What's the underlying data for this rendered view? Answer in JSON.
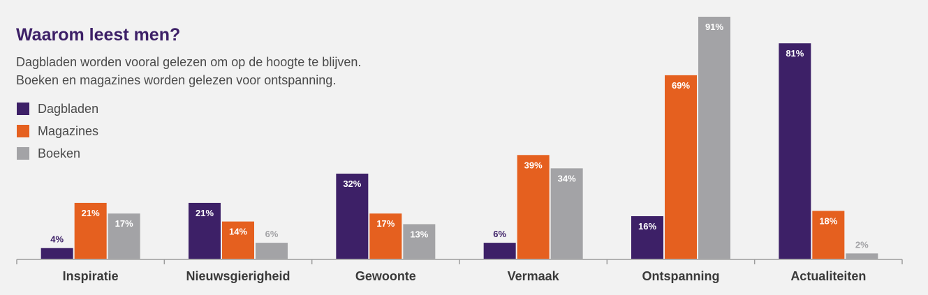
{
  "chart_data": {
    "type": "bar",
    "title": "Waarom leest men?",
    "subtitle_lines": [
      "Dagbladen worden vooral gelezen om op de hoogte te blijven.",
      "Boeken en magazines worden gelezen voor ontspanning."
    ],
    "categories": [
      "Inspiratie",
      "Nieuwsgierigheid",
      "Gewoonte",
      "Vermaak",
      "Ontspanning",
      "Actualiteiten"
    ],
    "series": [
      {
        "name": "Dagbladen",
        "color": "#3d2067",
        "values": [
          4,
          21,
          32,
          6,
          16,
          81
        ],
        "labels": [
          "4%",
          "21%",
          "32%",
          "6%",
          "16%",
          "81%"
        ]
      },
      {
        "name": "Magazines",
        "color": "#e5601f",
        "values": [
          21,
          14,
          17,
          39,
          69,
          18
        ],
        "labels": [
          "21%",
          "14%",
          "17%",
          "39%",
          "69%",
          "18%"
        ]
      },
      {
        "name": "Boeken",
        "color": "#a3a3a6",
        "values": [
          17,
          6,
          13,
          34,
          91,
          2
        ],
        "labels": [
          "17%",
          "6%",
          "13%",
          "34%",
          "91%",
          "2%"
        ]
      }
    ],
    "ylim": [
      0,
      91
    ],
    "grid": false,
    "legend_position": "top-left",
    "xlabel": "",
    "ylabel": ""
  }
}
